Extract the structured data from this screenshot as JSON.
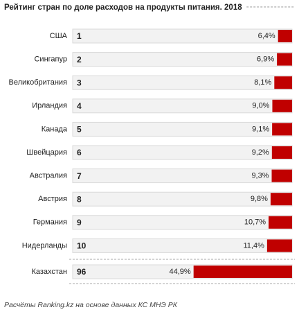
{
  "chart_data": {
    "type": "bar",
    "orientation": "horizontal",
    "title": "Рейтинг стран по доле расходов на продукты питания. 2018",
    "categories": [
      "США",
      "Сингапур",
      "Великобритания",
      "Ирландия",
      "Канада",
      "Швейцария",
      "Австралия",
      "Австрия",
      "Германия",
      "Нидерланды"
    ],
    "ranks": [
      1,
      2,
      3,
      4,
      5,
      6,
      7,
      8,
      9,
      10
    ],
    "values": [
      6.4,
      6.9,
      8.1,
      9.0,
      9.1,
      9.2,
      9.3,
      9.8,
      10.7,
      11.4
    ],
    "value_labels": [
      "6,4%",
      "6,9%",
      "8,1%",
      "9,0%",
      "9,1%",
      "9,2%",
      "9,3%",
      "9,8%",
      "10,7%",
      "11,4%"
    ],
    "color": "#c00000",
    "highlight": {
      "category": "Казахстан",
      "rank": 96,
      "value": 44.9,
      "value_label": "44,9%",
      "color": "#c00000"
    },
    "xlim": [
      0,
      100
    ],
    "source": "Расчёты Ranking.kz на основе данных КС МНЭ РК"
  }
}
